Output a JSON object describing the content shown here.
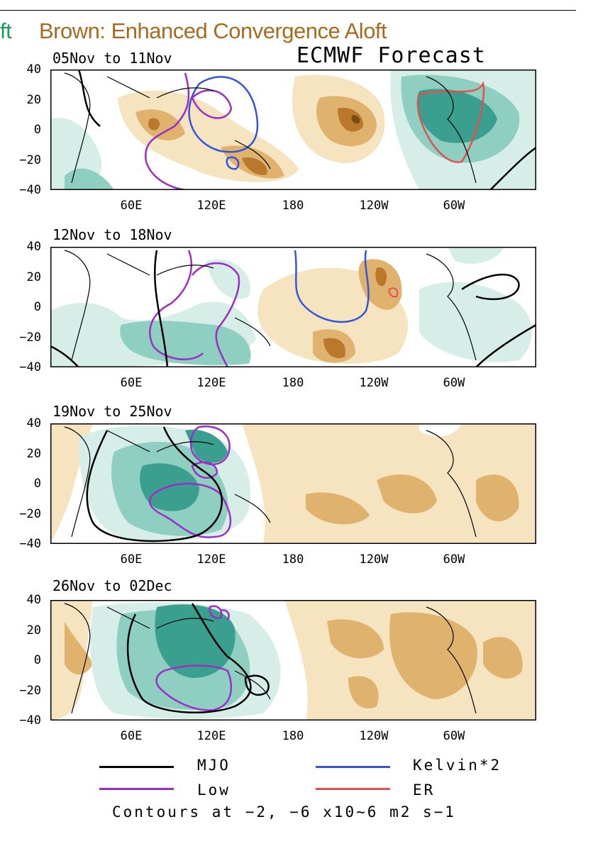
{
  "header": {
    "left_fragment": "ft",
    "right_title": "Brown: Enhanced Convergence Aloft",
    "model_title": "ECMWF Forecast"
  },
  "colors": {
    "green_label": "#1f9a5e",
    "brown_label": "#a86a1e",
    "green_light": "#d7eee8",
    "green_mid": "#8ecfc1",
    "green_dark": "#3a9f8e",
    "brown_light": "#f6e3bf",
    "brown_mid": "#dfb26e",
    "brown_dark": "#b9782c",
    "mjo": "#000000",
    "kelvin": "#3355dd",
    "low": "#9b2fc4",
    "er": "#e05050"
  },
  "axes": {
    "y_ticks": [
      "40",
      "20",
      "0",
      "−20",
      "−40"
    ],
    "x_ticks": [
      "60E",
      "120E",
      "180",
      "120W",
      "60W"
    ]
  },
  "panels": [
    {
      "title": "05Nov to 11Nov"
    },
    {
      "title": "12Nov to 18Nov"
    },
    {
      "title": "19Nov to 25Nov"
    },
    {
      "title": "26Nov to 02Dec"
    }
  ],
  "legend": {
    "items": [
      {
        "label": "MJO",
        "color": "#000000"
      },
      {
        "label": "Kelvin*2",
        "color": "#3355dd"
      },
      {
        "label": "Low",
        "color": "#9b2fc4"
      },
      {
        "label": "ER",
        "color": "#e05050"
      }
    ],
    "contours_note": "Contours at −2, −6 x10~6 m2 s−1"
  }
}
